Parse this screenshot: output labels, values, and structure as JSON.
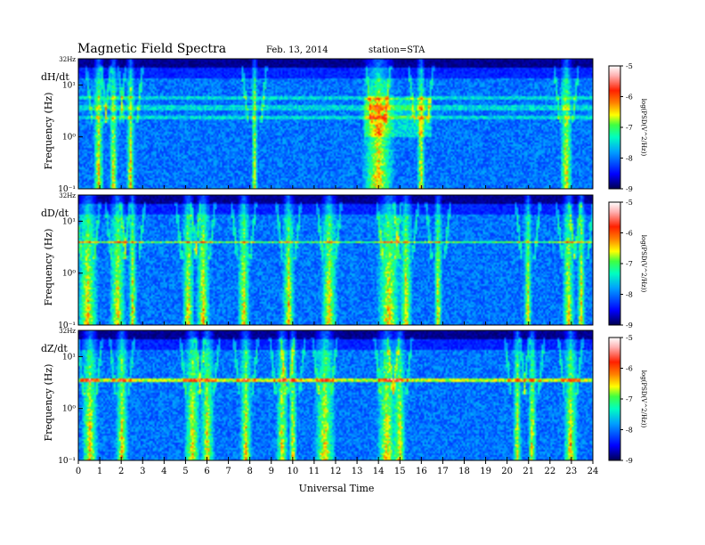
{
  "header": {
    "title": "Magnetic Field Spectra",
    "date": "Feb. 13, 2014",
    "station": "station=STA"
  },
  "chart_data": {
    "type": "heatmap",
    "xlabel": "Universal Time",
    "x_ticks": [
      "0",
      "1",
      "2",
      "3",
      "4",
      "5",
      "6",
      "7",
      "8",
      "9",
      "10",
      "11",
      "12",
      "13",
      "14",
      "15",
      "16",
      "17",
      "18",
      "19",
      "20",
      "21",
      "22",
      "23",
      "24"
    ],
    "xlim": [
      0,
      24
    ],
    "y_scale": "log",
    "colorbar": {
      "label": "log(PSD(V^2/Hz))",
      "ticks": [
        "-5",
        "-6",
        "-7",
        "-8",
        "-9"
      ],
      "range": [
        -9,
        -5
      ],
      "colors": [
        "#000064",
        "#0000ff",
        "#00a0ff",
        "#00ffc0",
        "#40ff40",
        "#ffff00",
        "#ff8000",
        "#ff2000",
        "#ffc8c8",
        "#ffffff"
      ]
    },
    "panels": [
      {
        "name": "dH/dt",
        "ylabel": "Frequency (Hz)",
        "y_ticks": [
          "32Hz",
          "10¹",
          "10⁰",
          "10⁻¹"
        ],
        "ylim": [
          0.1,
          32
        ]
      },
      {
        "name": "dD/dt",
        "ylabel": "Frequency (Hz)",
        "y_ticks": [
          "32Hz",
          "10¹",
          "10⁰",
          "10⁻¹"
        ],
        "ylim": [
          0.1,
          32
        ]
      },
      {
        "name": "dZ/dt",
        "ylabel": "Frequency (Hz)",
        "y_ticks": [
          "32Hz",
          "10¹",
          "10⁰",
          "10⁻¹"
        ],
        "ylim": [
          0.1,
          32
        ]
      }
    ]
  }
}
